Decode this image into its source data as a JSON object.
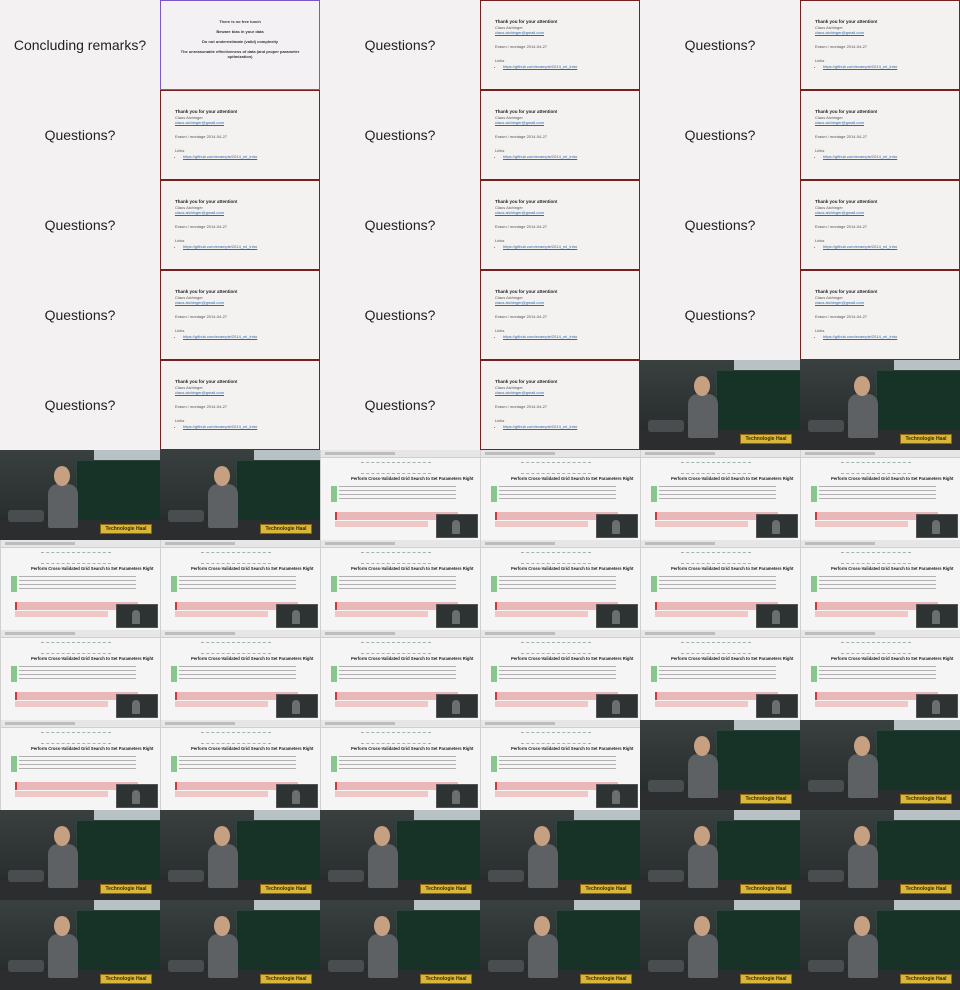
{
  "text_slides": {
    "concluding": "Concluding remarks?",
    "questions": "Questions?"
  },
  "lecture": {
    "lines": [
      "There is no free lunch",
      "Beware bias in your data",
      "Do not underestimate (valid) complexity",
      "The unreasonable effectiveness of data (and proper parameter optimization)"
    ]
  },
  "thanks": {
    "title": "Thank you for your attention!",
    "name": "Claus Aichinger",
    "email": "claus.aichinger@gmail.com",
    "session": "Erasm / montage 2014-04-27",
    "links_label": "Links",
    "link": "https://github.com/example/2014_ml_intro"
  },
  "screen": {
    "title": "Perform Cross-Validated Grid Search to Set Parameters Right"
  },
  "camera": {
    "sign": "Technologie Haal"
  },
  "layout": [
    [
      "concluding",
      "lecture",
      "questions",
      "thanks",
      "questions",
      "thanks"
    ],
    [
      "questions",
      "thanks",
      "questions",
      "thanks",
      "questions",
      "thanks"
    ],
    [
      "questions",
      "thanks",
      "questions",
      "thanks",
      "questions",
      "thanks"
    ],
    [
      "questions",
      "thanks",
      "questions",
      "thanks",
      "questions",
      "thanks"
    ],
    [
      "questions",
      "thanks",
      "questions",
      "thanks",
      "camera",
      "camera"
    ],
    [
      "camera",
      "camera",
      "screen",
      "screen",
      "screen",
      "screen"
    ],
    [
      "screen",
      "screen",
      "screen",
      "screen",
      "screen",
      "screen"
    ],
    [
      "screen",
      "screen",
      "screen",
      "screen",
      "screen",
      "screen"
    ],
    [
      "screen",
      "screen",
      "screen",
      "screen",
      "camera",
      "camera"
    ],
    [
      "camera",
      "camera",
      "camera",
      "camera",
      "camera",
      "camera"
    ],
    [
      "camera",
      "camera",
      "camera",
      "camera",
      "camera",
      "camera"
    ]
  ]
}
